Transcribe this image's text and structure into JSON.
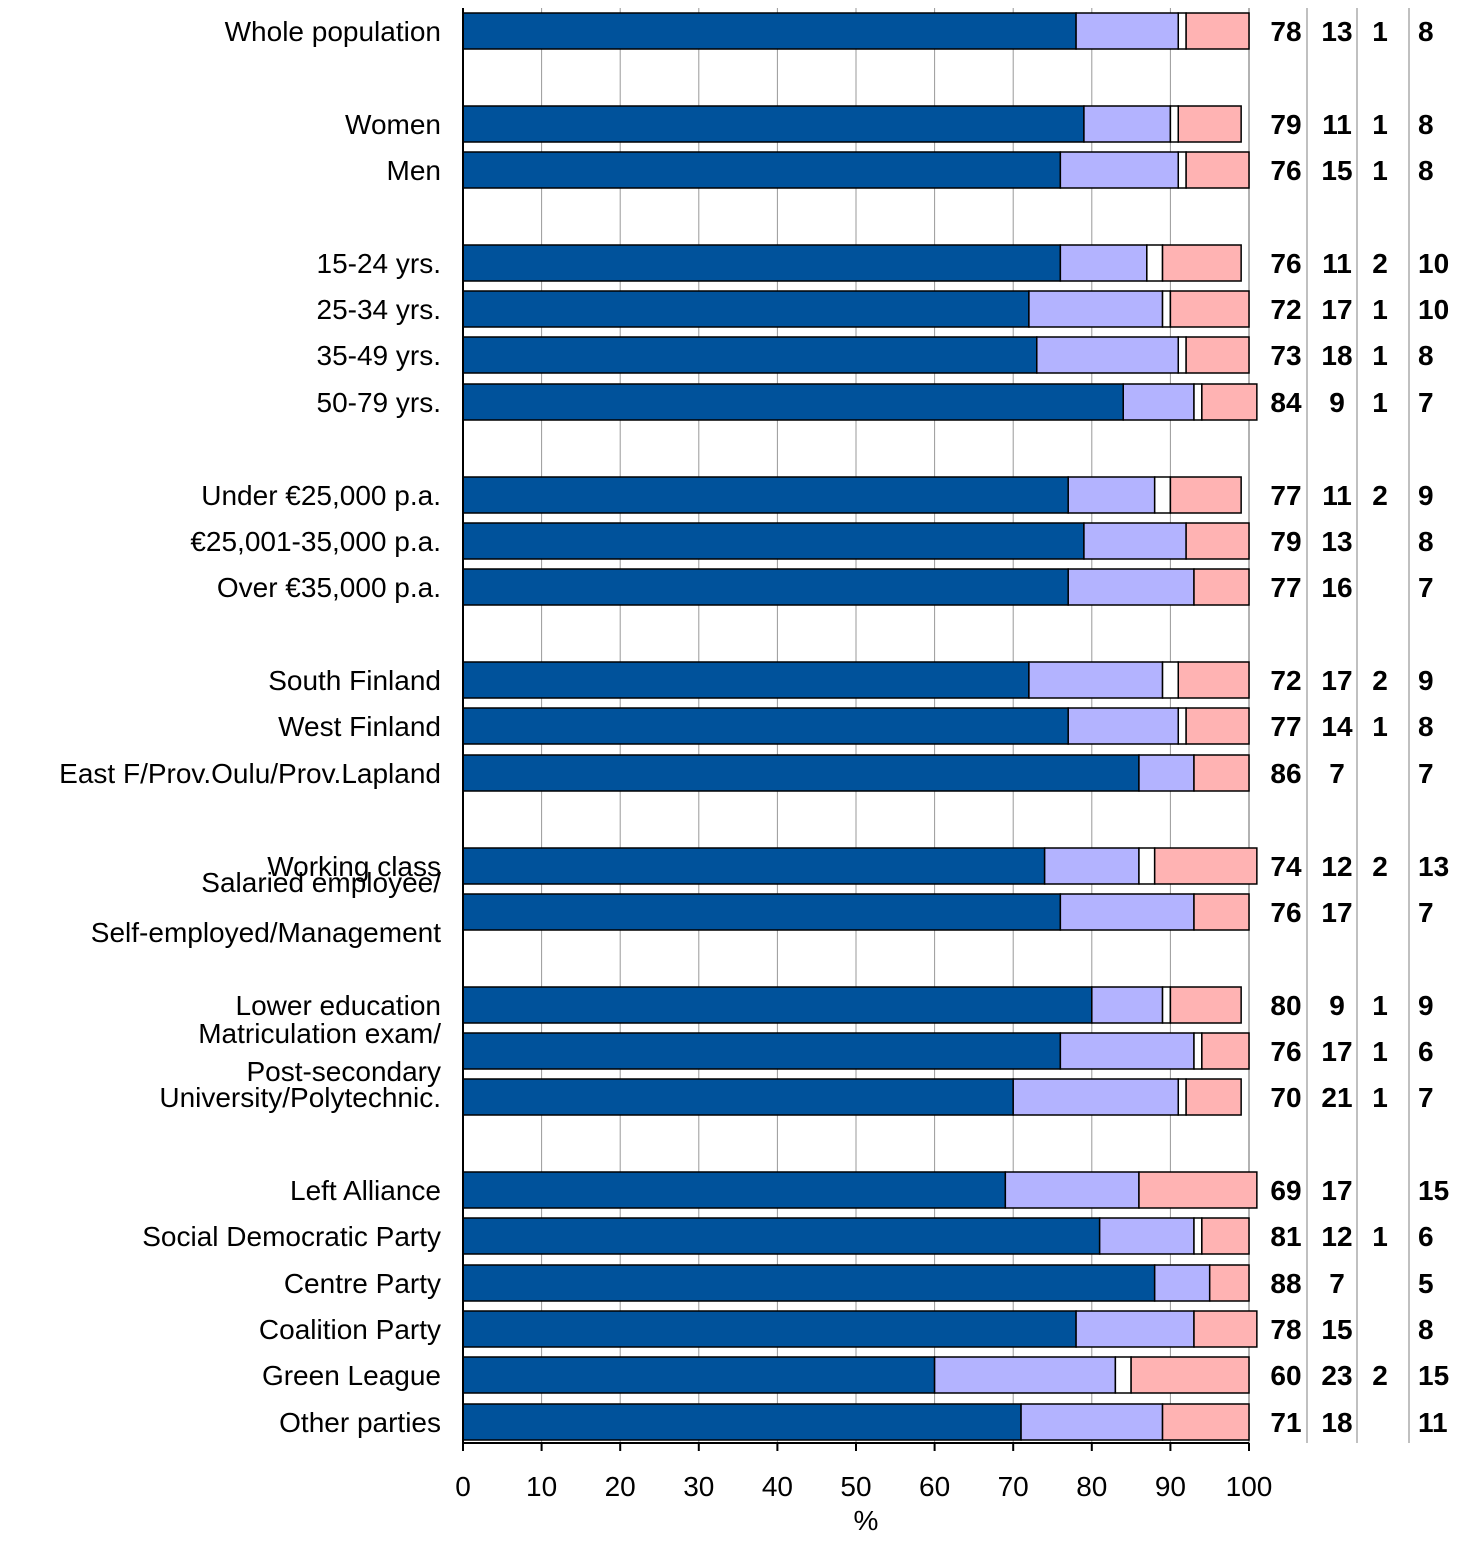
{
  "chart_data": {
    "type": "bar",
    "orientation": "horizontal",
    "stacked": true,
    "xlabel": "%",
    "xlim": [
      0,
      100
    ],
    "xticks": [
      0,
      10,
      20,
      30,
      40,
      50,
      60,
      70,
      80,
      90,
      100
    ],
    "grid": "vertical",
    "series_colors": [
      "#00529b",
      "#b3b3ff",
      "#ffffff",
      "#ffb3b3"
    ],
    "categories": [
      {
        "label": [
          "Whole population"
        ],
        "values": [
          78,
          13,
          1,
          8
        ],
        "labels": [
          "78",
          "13",
          "1",
          "8"
        ]
      },
      {
        "label": [
          "Women"
        ],
        "values": [
          79,
          11,
          1,
          8
        ],
        "labels": [
          "79",
          "11",
          "1",
          "8"
        ]
      },
      {
        "label": [
          "Men"
        ],
        "values": [
          76,
          15,
          1,
          8
        ],
        "labels": [
          "76",
          "15",
          "1",
          "8"
        ]
      },
      {
        "label": [
          "15-24 yrs."
        ],
        "values": [
          76,
          11,
          2,
          10
        ],
        "labels": [
          "76",
          "11",
          "2",
          "10"
        ]
      },
      {
        "label": [
          "25-34 yrs."
        ],
        "values": [
          72,
          17,
          1,
          10
        ],
        "labels": [
          "72",
          "17",
          "1",
          "10"
        ]
      },
      {
        "label": [
          "35-49 yrs."
        ],
        "values": [
          73,
          18,
          1,
          8
        ],
        "labels": [
          "73",
          "18",
          "1",
          "8"
        ]
      },
      {
        "label": [
          "50-79 yrs."
        ],
        "values": [
          84,
          9,
          1,
          7
        ],
        "labels": [
          "84",
          "9",
          "1",
          "7"
        ]
      },
      {
        "label": [
          "Under €25,000 p.a."
        ],
        "values": [
          77,
          11,
          2,
          9
        ],
        "labels": [
          "77",
          "11",
          "2",
          "9"
        ]
      },
      {
        "label": [
          "€25,001-35,000 p.a."
        ],
        "values": [
          79,
          13,
          0,
          8
        ],
        "labels": [
          "79",
          "13",
          "",
          "8"
        ]
      },
      {
        "label": [
          "Over €35,000 p.a."
        ],
        "values": [
          77,
          16,
          0,
          7
        ],
        "labels": [
          "77",
          "16",
          "",
          "7"
        ]
      },
      {
        "label": [
          "South Finland"
        ],
        "values": [
          72,
          17,
          2,
          9
        ],
        "labels": [
          "72",
          "17",
          "2",
          "9"
        ]
      },
      {
        "label": [
          "West Finland"
        ],
        "values": [
          77,
          14,
          1,
          8
        ],
        "labels": [
          "77",
          "14",
          "1",
          "8"
        ]
      },
      {
        "label": [
          "East F/Prov.Oulu/Prov.Lapland"
        ],
        "values": [
          86,
          7,
          0,
          7
        ],
        "labels": [
          "86",
          "7",
          "",
          "7"
        ]
      },
      {
        "label": [
          "Working class"
        ],
        "values": [
          74,
          12,
          2,
          13
        ],
        "labels": [
          "74",
          "12",
          "2",
          "13"
        ]
      },
      {
        "label": [
          "Salaried employee/",
          "Self-employed/Management"
        ],
        "values": [
          76,
          17,
          0,
          7
        ],
        "labels": [
          "76",
          "17",
          "",
          "7"
        ]
      },
      {
        "label": [
          "Lower education"
        ],
        "values": [
          80,
          9,
          1,
          9
        ],
        "labels": [
          "80",
          "9",
          "1",
          "9"
        ]
      },
      {
        "label": [
          "Matriculation exam/",
          "Post-secondary"
        ],
        "values": [
          76,
          17,
          1,
          6
        ],
        "labels": [
          "76",
          "17",
          "1",
          "6"
        ]
      },
      {
        "label": [
          "University/Polytechnic."
        ],
        "values": [
          70,
          21,
          1,
          7
        ],
        "labels": [
          "70",
          "21",
          "1",
          "7"
        ]
      },
      {
        "label": [
          "Left Alliance"
        ],
        "values": [
          69,
          17,
          0,
          15
        ],
        "labels": [
          "69",
          "17",
          "",
          "15"
        ]
      },
      {
        "label": [
          "Social Democratic Party"
        ],
        "values": [
          81,
          12,
          1,
          6
        ],
        "labels": [
          "81",
          "12",
          "1",
          "6"
        ]
      },
      {
        "label": [
          "Centre Party"
        ],
        "values": [
          88,
          7,
          0,
          5
        ],
        "labels": [
          "88",
          "7",
          "",
          "5"
        ]
      },
      {
        "label": [
          "Coalition Party"
        ],
        "values": [
          78,
          15,
          0,
          8
        ],
        "labels": [
          "78",
          "15",
          "",
          "8"
        ]
      },
      {
        "label": [
          "Green League"
        ],
        "values": [
          60,
          23,
          2,
          15
        ],
        "labels": [
          "60",
          "23",
          "2",
          "15"
        ]
      },
      {
        "label": [
          "Other parties"
        ],
        "values": [
          71,
          18,
          0,
          11
        ],
        "labels": [
          "71",
          "18",
          "",
          "11"
        ]
      }
    ]
  }
}
